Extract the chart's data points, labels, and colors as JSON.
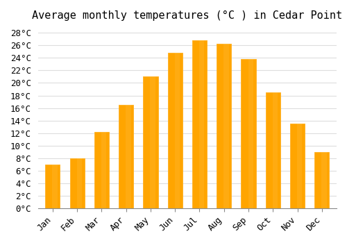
{
  "title": "Average monthly temperatures (°C ) in Cedar Point",
  "months": [
    "Jan",
    "Feb",
    "Mar",
    "Apr",
    "May",
    "Jun",
    "Jul",
    "Aug",
    "Sep",
    "Oct",
    "Nov",
    "Dec"
  ],
  "temperatures": [
    7,
    8,
    12.2,
    16.5,
    21.1,
    24.8,
    26.8,
    26.2,
    23.8,
    18.5,
    13.5,
    9.0
  ],
  "bar_color": "#FFA500",
  "bar_edge_color": "#FFB833",
  "ylim": [
    0,
    29
  ],
  "yticks": [
    0,
    2,
    4,
    6,
    8,
    10,
    12,
    14,
    16,
    18,
    20,
    22,
    24,
    26,
    28
  ],
  "background_color": "#FFFFFF",
  "grid_color": "#DDDDDD",
  "title_fontsize": 11,
  "tick_fontsize": 9,
  "font_family": "monospace"
}
